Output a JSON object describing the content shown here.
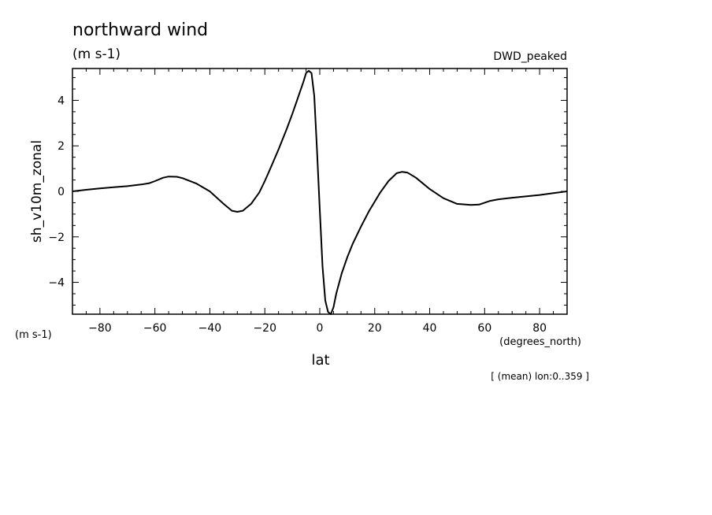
{
  "chart_data": {
    "type": "line",
    "title": "northward wind",
    "title_units": "(m s-1)",
    "dataset_label": "DWD_peaked",
    "ylabel": "sh_v10m_zonal",
    "y_units": "(m s-1)",
    "xlabel": "lat",
    "x_units": "(degrees_north)",
    "footnote": "[ (mean) lon:0..359 ]",
    "xlim": [
      -90,
      90
    ],
    "ylim": [
      -5.4,
      5.4
    ],
    "x_ticks": [
      -80,
      -60,
      -40,
      -20,
      0,
      20,
      40,
      60,
      80
    ],
    "y_ticks": [
      -4,
      -2,
      0,
      2,
      4
    ],
    "grid": false,
    "series": [
      {
        "color": "#000000",
        "x": [
          -90,
          -85,
          -80,
          -75,
          -70,
          -65,
          -62,
          -60,
          -57,
          -55,
          -52,
          -50,
          -45,
          -40,
          -35,
          -32,
          -30,
          -28,
          -25,
          -22,
          -20,
          -18,
          -15,
          -12,
          -10,
          -8,
          -6,
          -5,
          -4,
          -3,
          -2,
          -1,
          0,
          1,
          2,
          3,
          4,
          5,
          6,
          8,
          10,
          12,
          15,
          18,
          20,
          22,
          25,
          28,
          30,
          32,
          35,
          38,
          40,
          45,
          50,
          55,
          58,
          60,
          62,
          65,
          70,
          75,
          80,
          85,
          90
        ],
        "y": [
          0.0,
          0.07,
          0.13,
          0.18,
          0.23,
          0.3,
          0.36,
          0.45,
          0.6,
          0.65,
          0.64,
          0.58,
          0.35,
          0.0,
          -0.55,
          -0.85,
          -0.9,
          -0.85,
          -0.55,
          -0.05,
          0.45,
          1.0,
          1.85,
          2.75,
          3.4,
          4.1,
          4.8,
          5.2,
          5.3,
          5.2,
          4.2,
          1.8,
          -0.8,
          -3.3,
          -4.8,
          -5.3,
          -5.4,
          -5.1,
          -4.5,
          -3.6,
          -2.9,
          -2.3,
          -1.55,
          -0.85,
          -0.45,
          -0.05,
          0.45,
          0.8,
          0.86,
          0.82,
          0.6,
          0.3,
          0.1,
          -0.3,
          -0.55,
          -0.6,
          -0.58,
          -0.5,
          -0.42,
          -0.35,
          -0.28,
          -0.22,
          -0.16,
          -0.08,
          0.0
        ]
      }
    ]
  }
}
